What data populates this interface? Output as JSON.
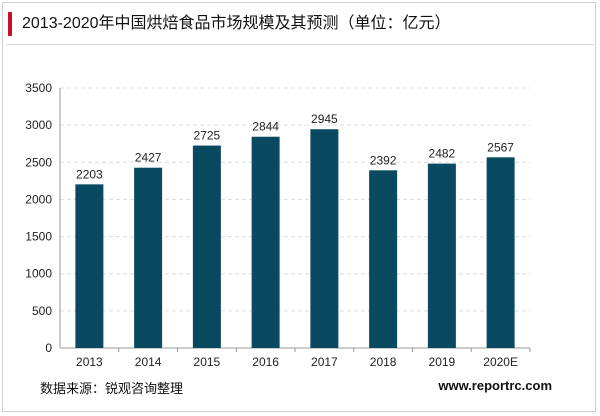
{
  "header": {
    "title": "2013-2020年中国烘焙食品市场规模及其预测（单位：亿元）"
  },
  "footer": {
    "source": "数据来源：锐观咨询整理",
    "website": "www.reportrc.com"
  },
  "colors": {
    "bar": "#0a4a61",
    "accent": "#c8102e",
    "grid": "#dcdcdc"
  },
  "chart_data": {
    "type": "bar",
    "title": "2013-2020年中国烘焙食品市场规模及其预测（单位：亿元）",
    "categories": [
      "2013",
      "2014",
      "2015",
      "2016",
      "2017",
      "2018",
      "2019",
      "2020E"
    ],
    "values": [
      2203,
      2427,
      2725,
      2844,
      2945,
      2392,
      2482,
      2567
    ],
    "ylim": [
      0,
      3500
    ],
    "yticks": [
      0,
      500,
      1000,
      1500,
      2000,
      2500,
      3000,
      3500
    ],
    "grid": true,
    "data_labels": true,
    "legend": "none"
  }
}
